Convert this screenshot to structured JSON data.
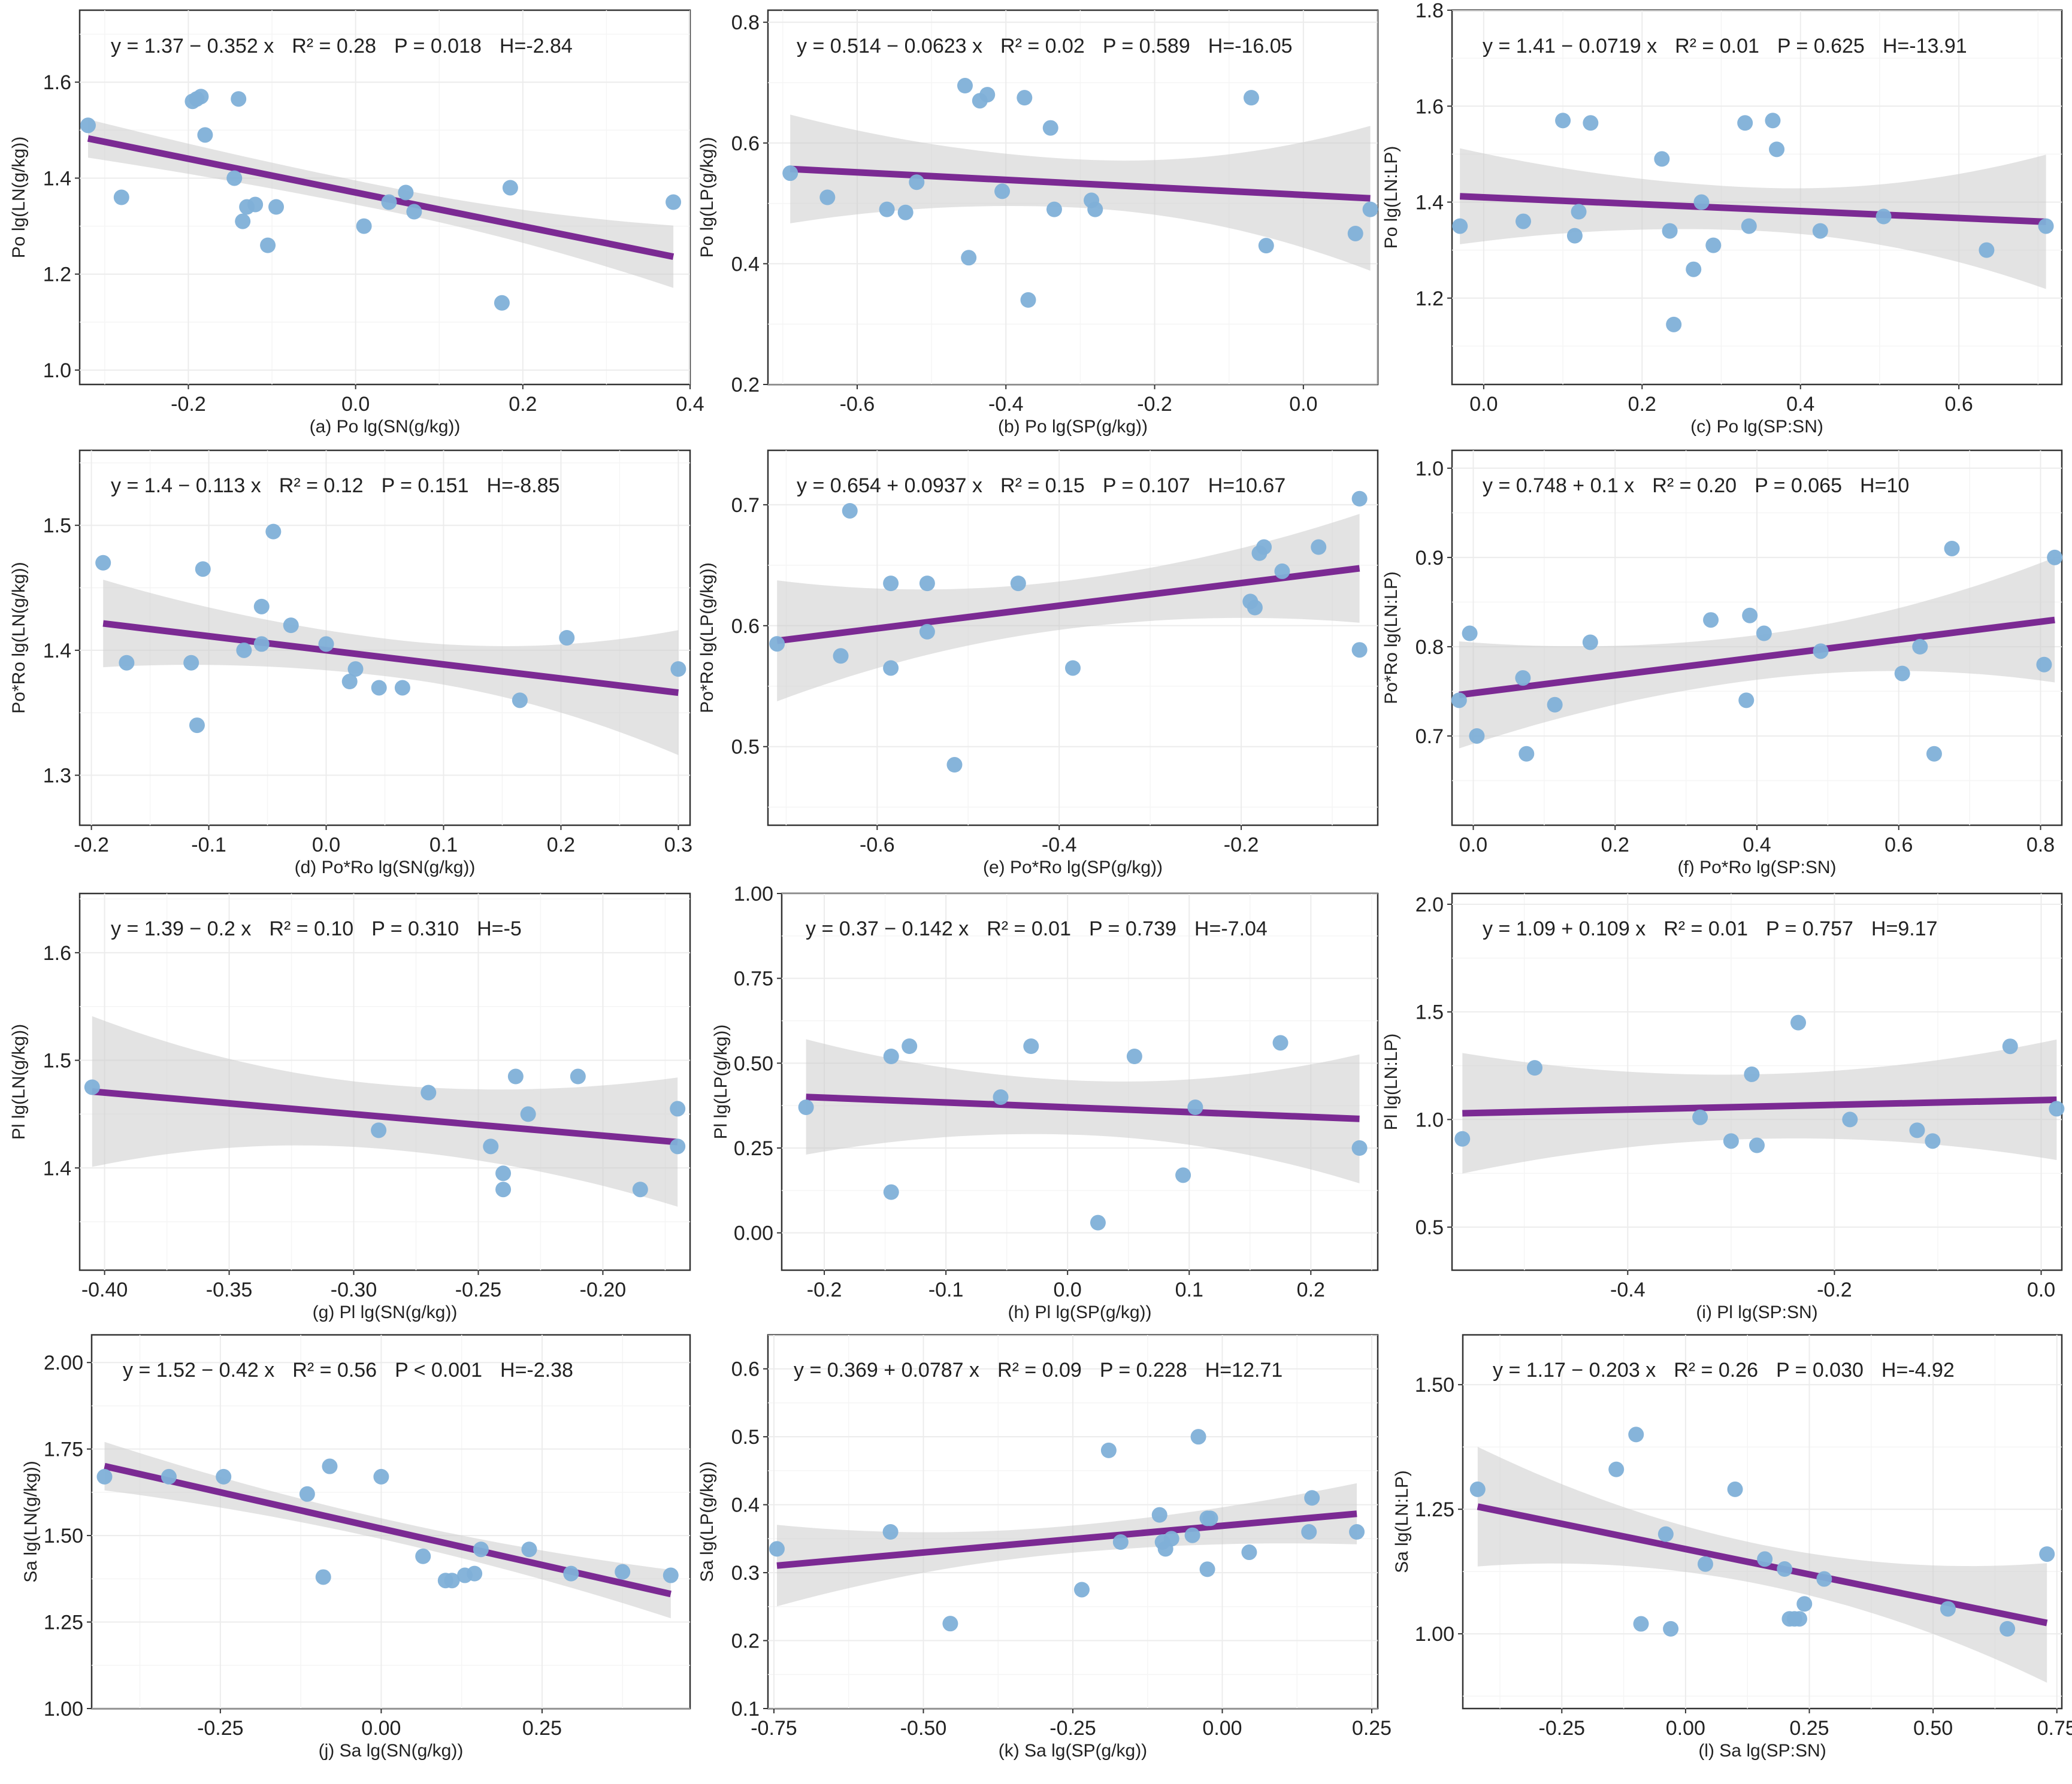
{
  "chart_data": [
    {
      "id": "a",
      "type": "scatter",
      "xlabel": "(a)  Po   lg(SN(g/kg))",
      "ylabel": "Po   lg(LN(g/kg))",
      "annotation": {
        "eq_left": "y = 1.37 − 0.352 x",
        "r2": "R² = 0.28",
        "p": "P = 0.018",
        "h": "H=-2.84"
      },
      "xlim": [
        -0.33,
        0.4
      ],
      "ylim": [
        0.97,
        1.75
      ],
      "xticks": [
        -0.2,
        0.0,
        0.2,
        0.4
      ],
      "yticks": [
        1.0,
        1.2,
        1.4,
        1.6
      ],
      "xtick_labels": [
        "-0.2",
        "0.0",
        "0.2",
        "0.4"
      ],
      "ytick_labels": [
        "1.0",
        "1.2",
        "1.4",
        "1.6"
      ],
      "fit": {
        "intercept": 1.37,
        "slope": -0.352,
        "ci": [
          0.04,
          0.025,
          0.065
        ]
      },
      "x": [
        -0.32,
        -0.28,
        -0.195,
        -0.19,
        -0.185,
        -0.18,
        -0.145,
        -0.14,
        -0.135,
        -0.13,
        -0.12,
        -0.105,
        -0.095,
        0.01,
        0.04,
        0.06,
        0.07,
        0.175,
        0.185,
        0.38
      ],
      "y": [
        1.51,
        1.36,
        1.56,
        1.565,
        1.57,
        1.49,
        1.4,
        1.565,
        1.31,
        1.34,
        1.345,
        1.26,
        1.34,
        1.3,
        1.35,
        1.37,
        1.33,
        1.14,
        1.38,
        1.35
      ]
    },
    {
      "id": "b",
      "type": "scatter",
      "xlabel": "(b)  Po   lg(SP(g/kg))",
      "ylabel": "Po   lg(LP(g/kg))",
      "annotation": {
        "eq_left": "y = 0.514 − 0.0623 x",
        "r2": "R² = 0.02",
        "p": "P = 0.589",
        "h": "H=-16.05"
      },
      "xlim": [
        -0.72,
        0.1
      ],
      "ylim": [
        0.2,
        0.82
      ],
      "xticks": [
        -0.6,
        -0.4,
        -0.2,
        0.0
      ],
      "yticks": [
        0.2,
        0.4,
        0.6,
        0.8
      ],
      "xtick_labels": [
        "-0.6",
        "-0.4",
        "-0.2",
        "0.0"
      ],
      "ytick_labels": [
        "0.2",
        "0.4",
        "0.6",
        "0.8"
      ],
      "fit": {
        "intercept": 0.514,
        "slope": -0.0623,
        "ci": [
          0.09,
          0.04,
          0.12
        ]
      },
      "x": [
        -0.69,
        -0.64,
        -0.56,
        -0.535,
        -0.52,
        -0.455,
        -0.45,
        -0.435,
        -0.425,
        -0.405,
        -0.375,
        -0.37,
        -0.34,
        -0.335,
        -0.285,
        -0.28,
        -0.07,
        -0.05,
        0.07,
        0.09
      ],
      "y": [
        0.55,
        0.51,
        0.49,
        0.485,
        0.535,
        0.695,
        0.41,
        0.67,
        0.68,
        0.52,
        0.675,
        0.34,
        0.625,
        0.49,
        0.505,
        0.49,
        0.675,
        0.43,
        0.45,
        0.49
      ]
    },
    {
      "id": "c",
      "type": "scatter",
      "xlabel": "(c)  Po   lg(SP:SN)",
      "ylabel": "Po   lg(LN:LP)",
      "annotation": {
        "eq_left": "y = 1.41 − 0.0719 x",
        "r2": "R² = 0.01",
        "p": "P = 0.625",
        "h": "H=-13.91"
      },
      "xlim": [
        -0.04,
        0.73
      ],
      "ylim": [
        1.02,
        1.8
      ],
      "xticks": [
        0.0,
        0.2,
        0.4,
        0.6
      ],
      "yticks": [
        1.2,
        1.4,
        1.6,
        1.8
      ],
      "xtick_labels": [
        "0.0",
        "0.2",
        "0.4",
        "0.6"
      ],
      "ytick_labels": [
        "1.2",
        "1.4",
        "1.6",
        "1.8"
      ],
      "fit": {
        "intercept": 1.41,
        "slope": -0.0719,
        "ci": [
          0.1,
          0.045,
          0.14
        ]
      },
      "x": [
        -0.03,
        0.05,
        0.1,
        0.115,
        0.12,
        0.135,
        0.225,
        0.235,
        0.24,
        0.265,
        0.275,
        0.29,
        0.33,
        0.335,
        0.365,
        0.37,
        0.425,
        0.505,
        0.635,
        0.71
      ],
      "y": [
        1.35,
        1.36,
        1.57,
        1.33,
        1.38,
        1.565,
        1.49,
        1.34,
        1.145,
        1.26,
        1.4,
        1.31,
        1.565,
        1.35,
        1.57,
        1.51,
        1.34,
        1.37,
        1.3,
        1.35
      ]
    },
    {
      "id": "d",
      "type": "scatter",
      "xlabel": "(d)  Po*Ro   lg(SN(g/kg))",
      "ylabel": "Po*Ro   lg(LN(g/kg))",
      "annotation": {
        "eq_left": "y = 1.4 − 0.113 x",
        "r2": "R² = 0.12",
        "p": "P = 0.151",
        "h": "H=-8.85"
      },
      "xlim": [
        -0.21,
        0.31
      ],
      "ylim": [
        1.26,
        1.56
      ],
      "xticks": [
        -0.2,
        -0.1,
        0.0,
        0.1,
        0.2,
        0.3
      ],
      "yticks": [
        1.3,
        1.4,
        1.5
      ],
      "xtick_labels": [
        "-0.2",
        "-0.1",
        "0.0",
        "0.1",
        "0.2",
        "0.3"
      ],
      "ytick_labels": [
        "1.3",
        "1.4",
        "1.5"
      ],
      "fit": {
        "intercept": 1.4,
        "slope": -0.113,
        "ci": [
          0.035,
          0.015,
          0.05
        ]
      },
      "x": [
        -0.19,
        -0.17,
        -0.115,
        -0.11,
        -0.105,
        -0.07,
        -0.055,
        -0.055,
        -0.045,
        -0.03,
        0.0,
        0.02,
        0.025,
        0.045,
        0.065,
        0.165,
        0.205,
        0.3
      ],
      "y": [
        1.47,
        1.39,
        1.39,
        1.34,
        1.465,
        1.4,
        1.435,
        1.405,
        1.495,
        1.42,
        1.405,
        1.375,
        1.385,
        1.37,
        1.37,
        1.36,
        1.41,
        1.385
      ]
    },
    {
      "id": "e",
      "type": "scatter",
      "xlabel": "(e)  Po*Ro   lg(SP(g/kg))",
      "ylabel": "Po*Ro   lg(LP(g/kg))",
      "annotation": {
        "eq_left": "y = 0.654 + 0.0937 x",
        "r2": "R² = 0.15",
        "p": "P = 0.107",
        "h": "H=10.67"
      },
      "xlim": [
        -0.72,
        -0.05
      ],
      "ylim": [
        0.435,
        0.745
      ],
      "xticks": [
        -0.6,
        -0.4,
        -0.2
      ],
      "yticks": [
        0.5,
        0.6,
        0.7
      ],
      "xtick_labels": [
        "-0.6",
        "-0.4",
        "-0.2"
      ],
      "ytick_labels": [
        "0.5",
        "0.6",
        "0.7"
      ],
      "fit": {
        "intercept": 0.654,
        "slope": 0.0937,
        "ci": [
          0.05,
          0.02,
          0.045
        ]
      },
      "x": [
        -0.71,
        -0.64,
        -0.63,
        -0.585,
        -0.585,
        -0.545,
        -0.545,
        -0.515,
        -0.445,
        -0.385,
        -0.19,
        -0.185,
        -0.18,
        -0.175,
        -0.155,
        -0.115,
        -0.07,
        -0.07
      ],
      "y": [
        0.585,
        0.575,
        0.695,
        0.565,
        0.635,
        0.595,
        0.635,
        0.485,
        0.635,
        0.565,
        0.62,
        0.615,
        0.66,
        0.665,
        0.645,
        0.665,
        0.705,
        0.58
      ]
    },
    {
      "id": "f",
      "type": "scatter",
      "xlabel": "(f)   Po*Ro   lg(SP:SN)",
      "ylabel": "Po*Ro   lg(LN:LP)",
      "annotation": {
        "eq_left": "y = 0.748 + 0.1 x",
        "r2": "R² = 0.20",
        "p": "P = 0.065",
        "h": "H=10"
      },
      "xlim": [
        -0.03,
        0.83
      ],
      "ylim": [
        0.6,
        1.02
      ],
      "xticks": [
        0.0,
        0.2,
        0.4,
        0.6,
        0.8
      ],
      "yticks": [
        0.7,
        0.8,
        0.9,
        1.0
      ],
      "xtick_labels": [
        "0.0",
        "0.2",
        "0.4",
        "0.6",
        "0.8"
      ],
      "ytick_labels": [
        "0.7",
        "0.8",
        "0.9",
        "1.0"
      ],
      "fit": {
        "intercept": 0.748,
        "slope": 0.1,
        "ci": [
          0.06,
          0.025,
          0.07
        ]
      },
      "x": [
        -0.02,
        -0.005,
        0.005,
        0.07,
        0.075,
        0.115,
        0.165,
        0.335,
        0.385,
        0.39,
        0.41,
        0.49,
        0.605,
        0.63,
        0.65,
        0.675,
        0.805,
        0.82
      ],
      "y": [
        0.74,
        0.815,
        0.7,
        0.765,
        0.68,
        0.735,
        0.805,
        0.83,
        0.74,
        0.835,
        0.815,
        0.795,
        0.77,
        0.8,
        0.68,
        0.91,
        0.78,
        0.9
      ]
    },
    {
      "id": "g",
      "type": "scatter",
      "xlabel": "(g)  Pl   lg(SN(g/kg))",
      "ylabel": "Pl   lg(LN(g/kg))",
      "annotation": {
        "eq_left": "y = 1.39 − 0.2 x",
        "r2": "R² = 0.10",
        "p": "P = 0.310",
        "h": "H=-5"
      },
      "xlim": [
        -0.41,
        -0.165
      ],
      "ylim": [
        1.305,
        1.655
      ],
      "xticks": [
        -0.4,
        -0.35,
        -0.3,
        -0.25,
        -0.2
      ],
      "yticks": [
        1.4,
        1.5,
        1.6
      ],
      "xtick_labels": [
        "-0.40",
        "-0.35",
        "-0.30",
        "-0.25",
        "-0.20"
      ],
      "ytick_labels": [
        "1.4",
        "1.5",
        "1.6"
      ],
      "fit": {
        "intercept": 1.39,
        "slope": -0.2,
        "ci": [
          0.07,
          0.03,
          0.06
        ]
      },
      "x": [
        -0.405,
        -0.29,
        -0.27,
        -0.245,
        -0.24,
        -0.24,
        -0.235,
        -0.23,
        -0.21,
        -0.185,
        -0.17,
        -0.17
      ],
      "y": [
        1.475,
        1.435,
        1.47,
        1.42,
        1.395,
        1.38,
        1.485,
        1.45,
        1.485,
        1.38,
        1.455,
        1.42
      ]
    },
    {
      "id": "h",
      "type": "scatter",
      "xlabel": "(h)   Pl   lg(SP(g/kg))",
      "ylabel": "Pl   lg(LP(g/kg))",
      "annotation": {
        "eq_left": "y = 0.37 − 0.142 x",
        "r2": "R² = 0.01",
        "p": "P = 0.739",
        "h": "H=-7.04"
      },
      "xlim": [
        -0.235,
        0.255
      ],
      "ylim": [
        -0.11,
        1.0
      ],
      "xticks": [
        -0.2,
        -0.1,
        0.0,
        0.1,
        0.2
      ],
      "yticks": [
        0.0,
        0.25,
        0.5,
        0.75,
        1.0
      ],
      "xtick_labels": [
        "-0.2",
        "-0.1",
        "0.0",
        "0.1",
        "0.2"
      ],
      "ytick_labels": [
        "0.00",
        "0.25",
        "0.50",
        "0.75",
        "1.00"
      ],
      "fit": {
        "intercept": 0.37,
        "slope": -0.142,
        "ci": [
          0.17,
          0.08,
          0.19
        ]
      },
      "x": [
        -0.215,
        -0.145,
        -0.145,
        -0.13,
        -0.055,
        -0.03,
        0.025,
        0.055,
        0.095,
        0.105,
        0.175,
        0.24
      ],
      "y": [
        0.37,
        0.52,
        0.12,
        0.55,
        0.4,
        0.55,
        0.03,
        0.52,
        0.17,
        0.37,
        0.56,
        0.25
      ]
    },
    {
      "id": "i",
      "type": "scatter",
      "xlabel": "(i)   Pl   lg(SP:SN)",
      "ylabel": "Pl   lg(LN:LP)",
      "annotation": {
        "eq_left": "y = 1.09 + 0.109 x",
        "r2": "R² = 0.01",
        "p": "P = 0.757",
        "h": "H=9.17"
      },
      "xlim": [
        -0.57,
        0.02
      ],
      "ylim": [
        0.3,
        2.05
      ],
      "xticks": [
        -0.4,
        -0.2,
        0.0
      ],
      "yticks": [
        0.5,
        1.0,
        1.5,
        2.0
      ],
      "xtick_labels": [
        "-0.4",
        "-0.2",
        "0.0"
      ],
      "ytick_labels": [
        "0.5",
        "1.0",
        "1.5",
        "2.0"
      ],
      "fit": {
        "intercept": 1.09,
        "slope": 0.109,
        "ci": [
          0.28,
          0.15,
          0.28
        ]
      },
      "x": [
        -0.56,
        -0.49,
        -0.33,
        -0.3,
        -0.28,
        -0.275,
        -0.235,
        -0.185,
        -0.12,
        -0.105,
        -0.03,
        0.015
      ],
      "y": [
        0.91,
        1.24,
        1.01,
        0.9,
        1.21,
        0.88,
        1.45,
        1.0,
        0.95,
        0.9,
        1.34,
        1.05
      ]
    },
    {
      "id": "j",
      "type": "scatter",
      "xlabel": "(j)  Sa   lg(SN(g/kg))",
      "ylabel": "Sa   lg(LN(g/kg))",
      "annotation": {
        "eq_left": "y = 1.52 − 0.42 x",
        "r2": "R² = 0.56",
        "p": "P < 0.001",
        "h": "H=-2.38"
      },
      "xlim": [
        -0.45,
        0.48
      ],
      "ylim": [
        1.0,
        2.08
      ],
      "xticks": [
        -0.25,
        0.0,
        0.25
      ],
      "yticks": [
        1.0,
        1.25,
        1.5,
        1.75,
        2.0
      ],
      "xtick_labels": [
        "-0.25",
        "0.00",
        "0.25"
      ],
      "ytick_labels": [
        "1.00",
        "1.25",
        "1.50",
        "1.75",
        "2.00"
      ],
      "fit": {
        "intercept": 1.52,
        "slope": -0.42,
        "ci": [
          0.07,
          0.03,
          0.07
        ]
      },
      "x": [
        -0.43,
        -0.33,
        -0.245,
        -0.115,
        -0.09,
        -0.08,
        0.0,
        0.065,
        0.1,
        0.11,
        0.13,
        0.145,
        0.155,
        0.23,
        0.295,
        0.375,
        0.45
      ],
      "y": [
        1.67,
        1.67,
        1.67,
        1.62,
        1.38,
        1.7,
        1.67,
        1.44,
        1.37,
        1.37,
        1.385,
        1.39,
        1.46,
        1.46,
        1.39,
        1.395,
        1.385
      ]
    },
    {
      "id": "k",
      "type": "scatter",
      "xlabel": "(k)   Sa   lg(SP(g/kg))",
      "ylabel": "Sa   lg(LP(g/kg))",
      "annotation": {
        "eq_left": "y = 0.369 + 0.0787 x",
        "r2": "R² = 0.09",
        "p": "P = 0.228",
        "h": "H=12.71"
      },
      "xlim": [
        -0.76,
        0.26
      ],
      "ylim": [
        0.1,
        0.65
      ],
      "xticks": [
        -0.75,
        -0.5,
        -0.25,
        0.0,
        0.25
      ],
      "yticks": [
        0.1,
        0.2,
        0.3,
        0.4,
        0.5,
        0.6
      ],
      "xtick_labels": [
        "-0.75",
        "-0.50",
        "-0.25",
        "0.00",
        "0.25"
      ],
      "ytick_labels": [
        "0.1",
        "0.2",
        "0.3",
        "0.4",
        "0.5",
        "0.6"
      ],
      "fit": {
        "intercept": 0.369,
        "slope": 0.0787,
        "ci": [
          0.06,
          0.02,
          0.045
        ]
      },
      "x": [
        -0.745,
        -0.555,
        -0.455,
        -0.235,
        -0.19,
        -0.17,
        -0.105,
        -0.1,
        -0.095,
        -0.085,
        -0.05,
        -0.04,
        -0.025,
        -0.025,
        -0.02,
        0.045,
        0.145,
        0.15,
        0.225
      ],
      "y": [
        0.335,
        0.36,
        0.225,
        0.275,
        0.48,
        0.345,
        0.385,
        0.345,
        0.335,
        0.35,
        0.355,
        0.5,
        0.305,
        0.38,
        0.38,
        0.33,
        0.36,
        0.41,
        0.36
      ]
    },
    {
      "id": "l",
      "type": "scatter",
      "xlabel": "(l)   Sa   lg(SP:SN)",
      "ylabel": "Sa   lg(LN:LP)",
      "annotation": {
        "eq_left": "y = 1.17 − 0.203 x",
        "r2": "R² = 0.26",
        "p": "P = 0.030",
        "h": "H=-4.92"
      },
      "xlim": [
        -0.45,
        0.76
      ],
      "ylim": [
        0.85,
        1.6
      ],
      "xticks": [
        -0.25,
        0.0,
        0.25,
        0.5,
        0.75
      ],
      "yticks": [
        1.0,
        1.25,
        1.5
      ],
      "xtick_labels": [
        "-0.25",
        "0.00",
        "0.25",
        "0.50",
        "0.75"
      ],
      "ytick_labels": [
        "1.00",
        "1.25",
        "1.50"
      ],
      "fit": {
        "intercept": 1.17,
        "slope": -0.203,
        "ci": [
          0.12,
          0.04,
          0.12
        ]
      },
      "x": [
        -0.42,
        -0.14,
        -0.1,
        -0.09,
        -0.04,
        -0.03,
        0.04,
        0.1,
        0.16,
        0.2,
        0.21,
        0.22,
        0.23,
        0.24,
        0.28,
        0.53,
        0.65,
        0.73
      ],
      "y": [
        1.29,
        1.33,
        1.4,
        1.02,
        1.2,
        1.01,
        1.14,
        1.29,
        1.15,
        1.13,
        1.03,
        1.03,
        1.03,
        1.06,
        1.11,
        1.05,
        1.01,
        1.16
      ]
    }
  ]
}
